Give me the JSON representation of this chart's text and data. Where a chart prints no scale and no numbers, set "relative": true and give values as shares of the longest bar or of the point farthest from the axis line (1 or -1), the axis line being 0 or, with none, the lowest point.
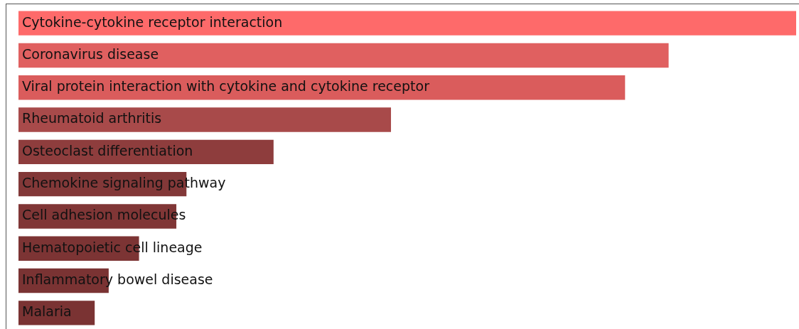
{
  "chart_data": {
    "type": "bar",
    "orientation": "horizontal",
    "relative": true,
    "legend": false,
    "categories": [
      "Cytokine-cytokine receptor interaction",
      "Coronavirus disease",
      "Viral protein interaction with cytokine and cytokine receptor",
      "Rheumatoid arthritis",
      "Osteoclast differentiation",
      "Chemokine signaling pathway",
      "Cell adhesion molecules",
      "Hematopoietic cell lineage",
      "Inflammatory bowel disease",
      "Malaria"
    ],
    "values": [
      1,
      0.836,
      0.78,
      0.479,
      0.328,
      0.216,
      0.203,
      0.155,
      0.116,
      0.098
    ],
    "colors": [
      "#fe6a6a",
      "#e06060",
      "#da5c5c",
      "#a84a4a",
      "#8e3d3d",
      "#823838",
      "#803636",
      "#7c3434",
      "#7a3333",
      "#7a3333"
    ]
  }
}
